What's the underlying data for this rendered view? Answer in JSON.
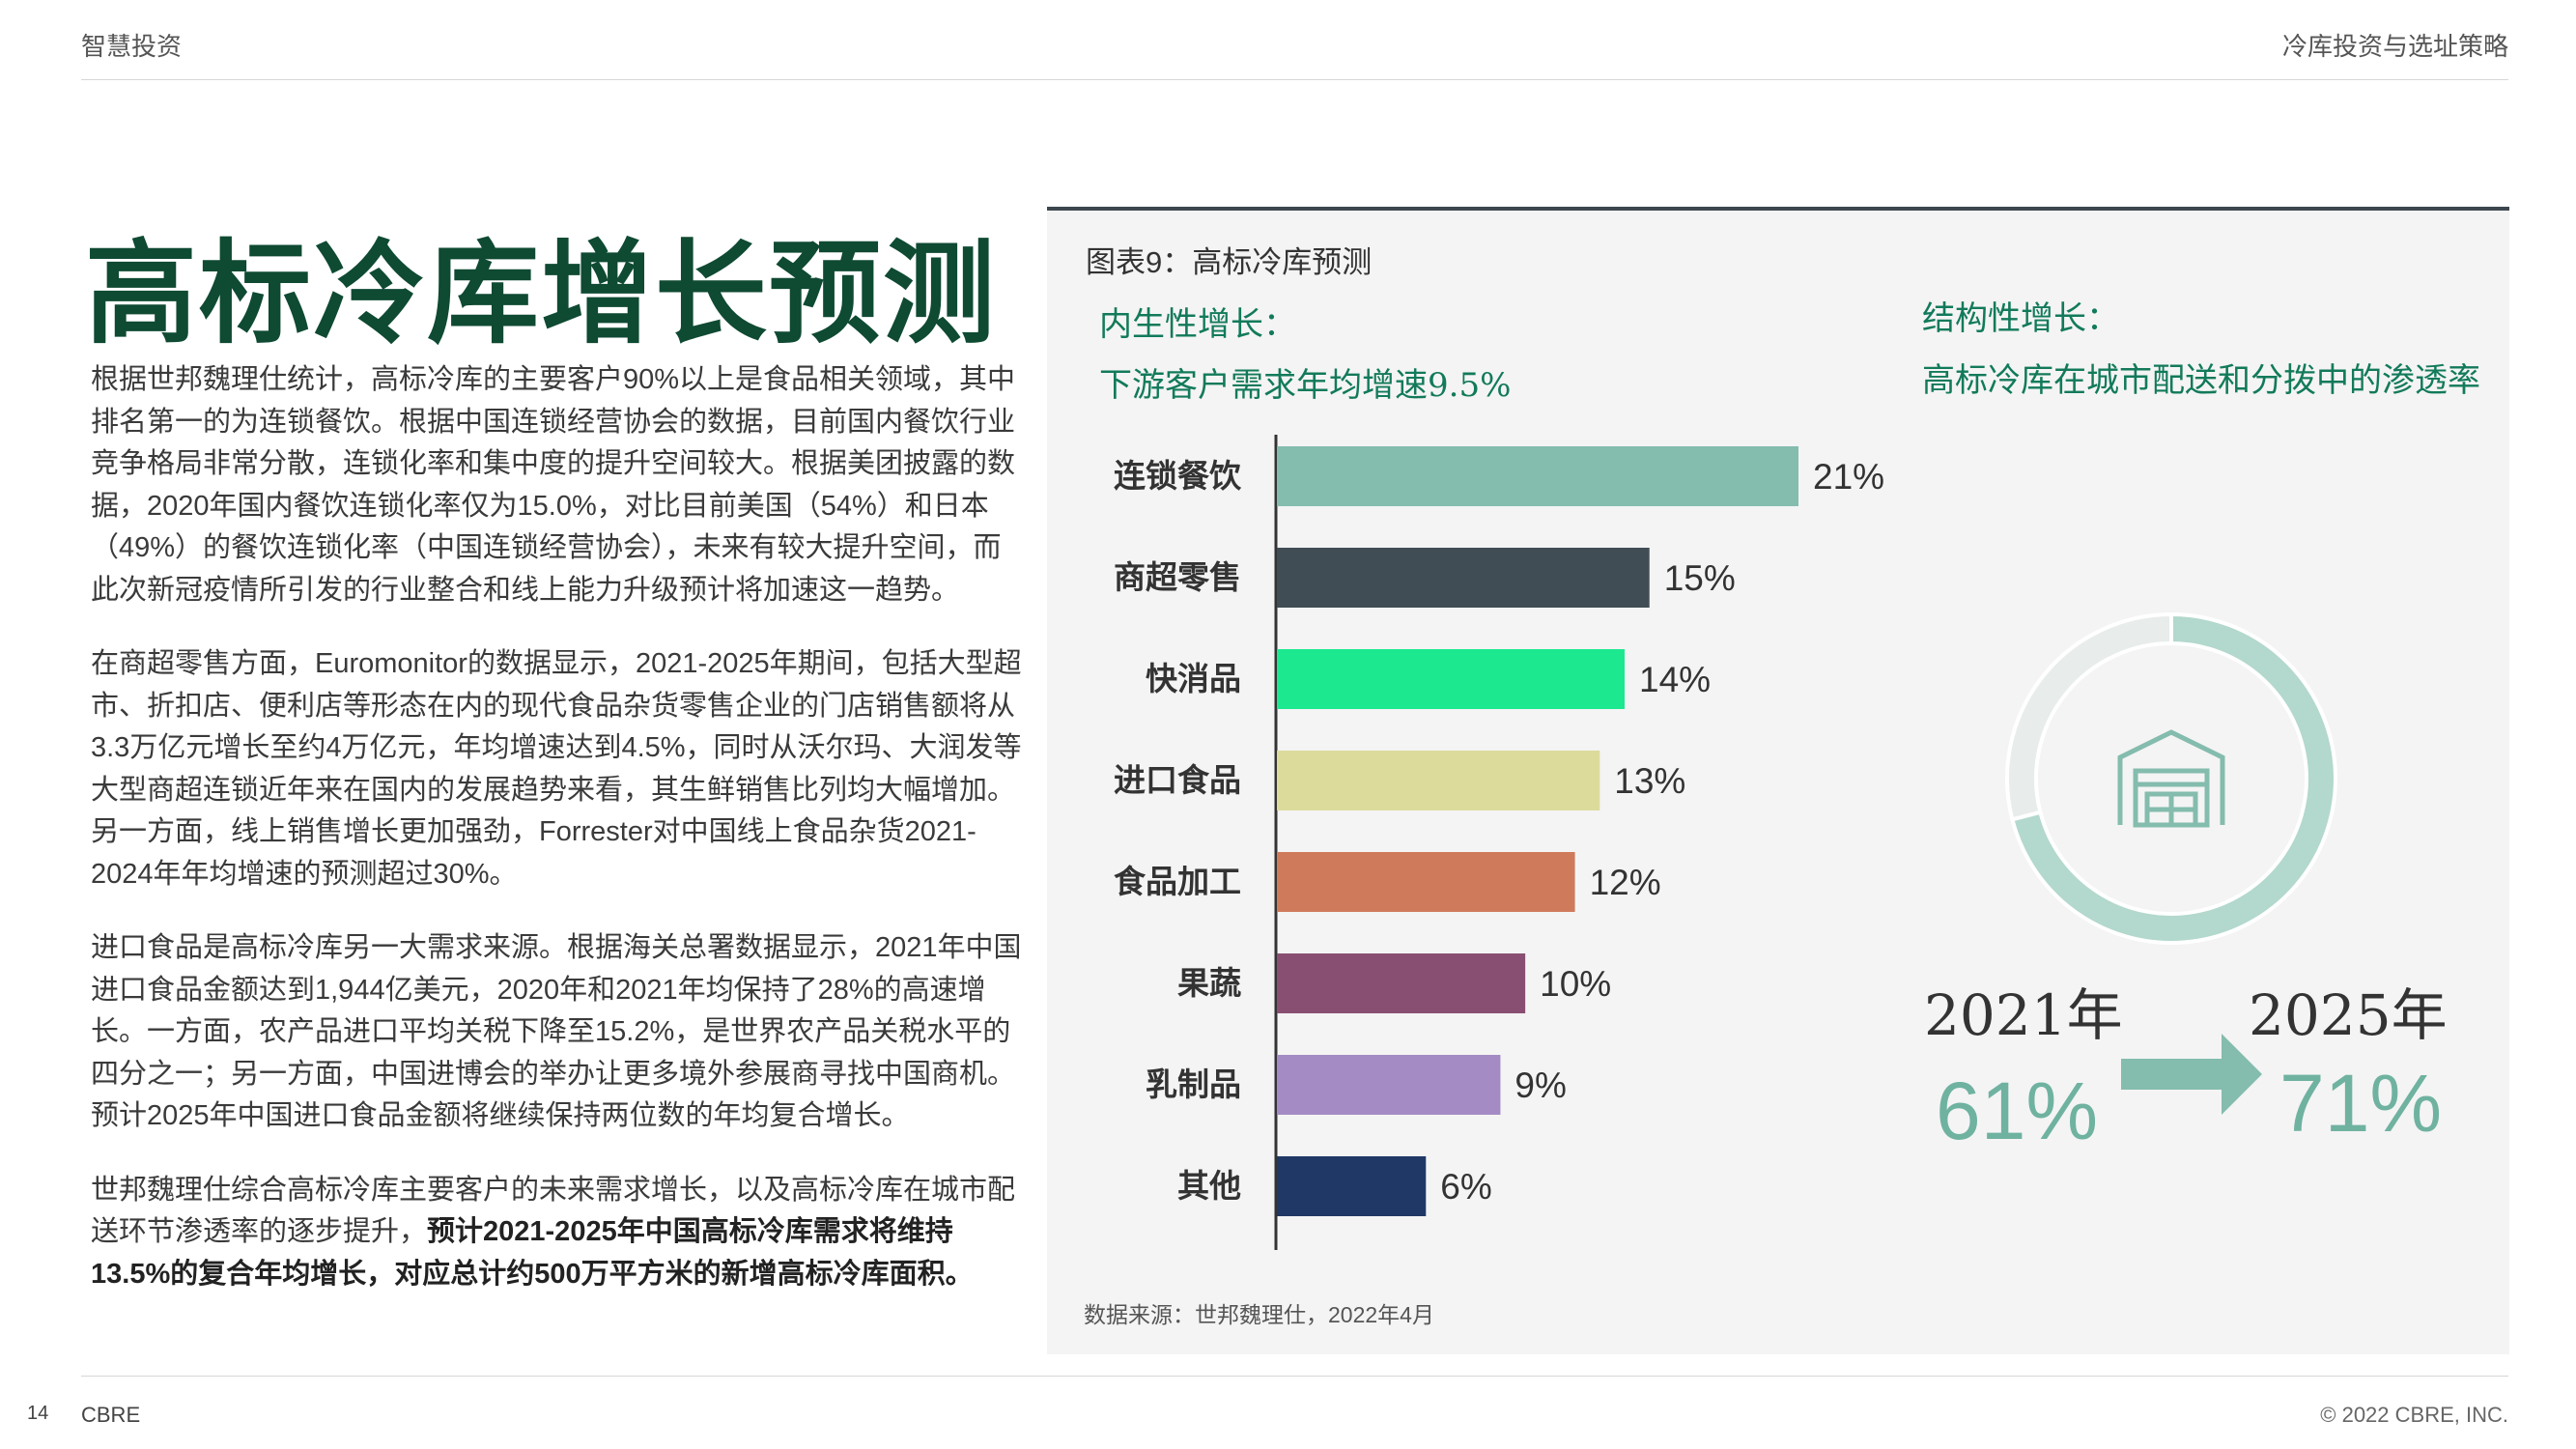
{
  "header": {
    "left": "智慧投资",
    "right": "冷库投资与选址策略"
  },
  "title": "高标冷库增长预测",
  "body": {
    "p1": "根据世邦魏理仕统计，高标冷库的主要客户90%以上是食品相关领域，其中排名第一的为连锁餐饮。根据中国连锁经营协会的数据，目前国内餐饮行业竞争格局非常分散，连锁化率和集中度的提升空间较大。根据美团披露的数据，2020年国内餐饮连锁化率仅为15.0%，对比目前美国（54%）和日本（49%）的餐饮连锁化率（中国连锁经营协会），未来有较大提升空间，而此次新冠疫情所引发的行业整合和线上能力升级预计将加速这一趋势。",
    "p2": "在商超零售方面，Euromonitor的数据显示，2021-2025年期间，包括大型超市、折扣店、便利店等形态在内的现代食品杂货零售企业的门店销售额将从3.3万亿元增长至约4万亿元，年均增速达到4.5%，同时从沃尔玛、大润发等大型商超连锁近年来在国内的发展趋势来看，其生鲜销售比列均大幅增加。另一方面，线上销售增长更加强劲，Forrester对中国线上食品杂货2021-2024年年均增速的预测超过30%。",
    "p3": "进口食品是高标冷库另一大需求来源。根据海关总署数据显示，2021年中国进口食品金额达到1,944亿美元，2020年和2021年均保持了28%的高速增长。一方面，农产品进口平均关税下降至15.2%，是世界农产品关税水平的四分之一；另一方面，中国进博会的举办让更多境外参展商寻找中国商机。预计2025年中国进口食品金额将继续保持两位数的年均复合增长。",
    "p4_plain": "世邦魏理仕综合高标冷库主要客户的未来需求增长，以及高标冷库在城市配送环节渗透率的逐步提升，",
    "p4_bold": "预计2021-2025年中国高标冷库需求将维持13.5%的复合年均增长，对应总计约500万平方米的新增高标冷库面积。"
  },
  "figure": {
    "title": "图表9：高标冷库预测",
    "endogenous_line1": "内生性增长：",
    "endogenous_line2": "下游客户需求年均增速9.5%",
    "structural_line1": "结构性增长：",
    "structural_line2": "高标冷库在城市配送和分拨中的渗透率",
    "source": "数据来源：世邦魏理仕，2022年4月"
  },
  "chart_data": [
    {
      "type": "bar",
      "orientation": "horizontal",
      "categories": [
        "连锁餐饮",
        "商超零售",
        "快消品",
        "进口食品",
        "食品加工",
        "果蔬",
        "乳制品",
        "其他"
      ],
      "values": [
        21,
        15,
        14,
        13,
        12,
        10,
        9,
        6
      ],
      "value_labels": [
        "21%",
        "15%",
        "14%",
        "13%",
        "12%",
        "10%",
        "9%",
        "6%"
      ],
      "colors": [
        "#84bcad",
        "#414d54",
        "#1ce88f",
        "#dcdb9c",
        "#d07a5c",
        "#894f73",
        "#a48bc4",
        "#1f3865"
      ],
      "xlim": [
        0,
        21
      ]
    },
    {
      "type": "pie",
      "variant": "donut",
      "slices": [
        {
          "label": "2025年",
          "value": 71,
          "color": "#b3d8cd"
        },
        {
          "label": "",
          "value": 29,
          "color": "#e8eceb"
        }
      ]
    }
  ],
  "penetration": {
    "year_from": "2021年",
    "year_to": "2025年",
    "value_from": "61%",
    "value_to": "71%",
    "accent_color": "#6fb2a0"
  },
  "footer": {
    "page": "14",
    "brand": "CBRE",
    "copyright": "© 2022 CBRE, INC."
  }
}
